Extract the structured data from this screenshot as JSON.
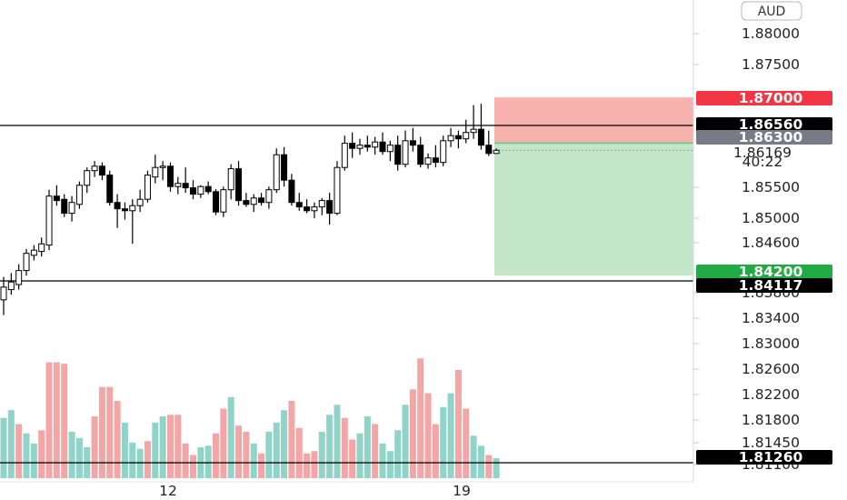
{
  "currency_badge": "AUD",
  "y_axis": {
    "tick_labels": [
      "1.88000",
      "1.87500",
      "1.85500",
      "1.85000",
      "1.84600",
      "1.83800",
      "1.83400",
      "1.83000",
      "1.82600",
      "1.82200",
      "1.81800",
      "1.81450",
      "1.81100"
    ]
  },
  "price_tags": [
    {
      "label": "1.87000",
      "color": "#f23645"
    },
    {
      "label": "1.86560",
      "color": "#000000"
    },
    {
      "label": "1.86300",
      "color": "#787b86"
    },
    {
      "label": "1.84200",
      "color": "#22ab45"
    },
    {
      "label": "1.84117",
      "color": "#000000"
    },
    {
      "label": "1.81260",
      "color": "#000000"
    }
  ],
  "current_price": {
    "label": "1.86169",
    "countdown": "40:22"
  },
  "x_axis": {
    "tick_labels": [
      "12",
      "19"
    ]
  },
  "colors": {
    "up": "#ffffff",
    "down": "#000000",
    "outline": "#000000",
    "vol_up": "#8fd3c9",
    "vol_down": "#f4a5a5",
    "stop_zone": "#f7b2ad",
    "target_zone": "#c3e6c9"
  },
  "chart_data": {
    "type": "candlestick",
    "symbol_quote_currency": "AUD",
    "horizontal_levels": [
      1.8656,
      1.84117,
      1.8126
    ],
    "position": {
      "entry": 1.863,
      "stop_loss": 1.87,
      "take_profit": 1.842
    },
    "last_price": 1.86169,
    "x_tick_labels": [
      "12",
      "19"
    ],
    "candles": [
      [
        1.8382,
        1.8418,
        1.8358,
        1.8402
      ],
      [
        1.8398,
        1.8424,
        1.839,
        1.841
      ],
      [
        1.8406,
        1.8438,
        1.8398,
        1.8428
      ],
      [
        1.8428,
        1.8462,
        1.842,
        1.8455
      ],
      [
        1.8452,
        1.8468,
        1.8444,
        1.846
      ],
      [
        1.8458,
        1.848,
        1.845,
        1.847
      ],
      [
        1.8468,
        1.8555,
        1.846,
        1.8545
      ],
      [
        1.8545,
        1.8562,
        1.853,
        1.8538
      ],
      [
        1.854,
        1.8548,
        1.8512,
        1.8518
      ],
      [
        1.8518,
        1.8545,
        1.8505,
        1.8535
      ],
      [
        1.8532,
        1.8568,
        1.8525,
        1.8562
      ],
      [
        1.8562,
        1.859,
        1.855,
        1.8585
      ],
      [
        1.8585,
        1.86,
        1.8575,
        1.8592
      ],
      [
        1.8592,
        1.8598,
        1.857,
        1.8578
      ],
      [
        1.8578,
        1.8585,
        1.853,
        1.8535
      ],
      [
        1.8535,
        1.8548,
        1.8495,
        1.8525
      ],
      [
        1.8525,
        1.8535,
        1.8508,
        1.8522
      ],
      [
        1.8522,
        1.854,
        1.847,
        1.853
      ],
      [
        1.853,
        1.8555,
        1.852,
        1.854
      ],
      [
        1.854,
        1.8585,
        1.8535,
        1.8578
      ],
      [
        1.8575,
        1.861,
        1.8565,
        1.859
      ],
      [
        1.859,
        1.86,
        1.857,
        1.8592
      ],
      [
        1.8592,
        1.8598,
        1.8552,
        1.856
      ],
      [
        1.856,
        1.8575,
        1.8548,
        1.8565
      ],
      [
        1.8565,
        1.859,
        1.855,
        1.8558
      ],
      [
        1.8558,
        1.857,
        1.854,
        1.8548
      ],
      [
        1.8548,
        1.8562,
        1.8542,
        1.856
      ],
      [
        1.856,
        1.8568,
        1.8548,
        1.8552
      ],
      [
        1.8552,
        1.8556,
        1.8515,
        1.852
      ],
      [
        1.852,
        1.856,
        1.8512,
        1.8555
      ],
      [
        1.8555,
        1.8595,
        1.854,
        1.8588
      ],
      [
        1.8588,
        1.86,
        1.853,
        1.8538
      ],
      [
        1.8538,
        1.855,
        1.8528,
        1.8532
      ],
      [
        1.8532,
        1.8548,
        1.852,
        1.8542
      ],
      [
        1.8542,
        1.855,
        1.853,
        1.8535
      ],
      [
        1.8535,
        1.856,
        1.8525,
        1.8555
      ],
      [
        1.8555,
        1.862,
        1.855,
        1.861
      ],
      [
        1.861,
        1.8622,
        1.856,
        1.857
      ],
      [
        1.857,
        1.858,
        1.853,
        1.8535
      ],
      [
        1.8535,
        1.855,
        1.8522,
        1.8528
      ],
      [
        1.8528,
        1.854,
        1.8518,
        1.8522
      ],
      [
        1.8522,
        1.8535,
        1.851,
        1.8528
      ],
      [
        1.8528,
        1.8542,
        1.8515,
        1.8538
      ],
      [
        1.8538,
        1.855,
        1.85,
        1.8518
      ],
      [
        1.8518,
        1.86,
        1.8515,
        1.859
      ],
      [
        1.859,
        1.864,
        1.8585,
        1.8628
      ],
      [
        1.8628,
        1.8645,
        1.8605,
        1.862
      ],
      [
        1.862,
        1.8635,
        1.861,
        1.8625
      ],
      [
        1.8625,
        1.864,
        1.8615,
        1.8622
      ],
      [
        1.8622,
        1.8638,
        1.861,
        1.863
      ],
      [
        1.863,
        1.8645,
        1.861,
        1.8615
      ],
      [
        1.8615,
        1.8632,
        1.86,
        1.8625
      ],
      [
        1.8625,
        1.864,
        1.8585,
        1.8595
      ],
      [
        1.8595,
        1.8648,
        1.859,
        1.8632
      ],
      [
        1.8632,
        1.8652,
        1.8615,
        1.8625
      ],
      [
        1.8625,
        1.8638,
        1.859,
        1.8595
      ],
      [
        1.8595,
        1.8612,
        1.8588,
        1.8605
      ],
      [
        1.8605,
        1.8625,
        1.859,
        1.8598
      ],
      [
        1.8598,
        1.864,
        1.8592,
        1.8632
      ],
      [
        1.8632,
        1.8652,
        1.8622,
        1.864
      ],
      [
        1.864,
        1.8648,
        1.862,
        1.8635
      ],
      [
        1.8635,
        1.8665,
        1.8628,
        1.8645
      ],
      [
        1.8645,
        1.8688,
        1.8635,
        1.865
      ],
      [
        1.865,
        1.869,
        1.8618,
        1.8625
      ],
      [
        1.8625,
        1.8648,
        1.8608,
        1.8612
      ],
      [
        1.8612,
        1.862,
        1.8612,
        1.8617
      ]
    ],
    "volume": [
      [
        1,
        78
      ],
      [
        1,
        88
      ],
      [
        0,
        70
      ],
      [
        1,
        58
      ],
      [
        1,
        45
      ],
      [
        0,
        62
      ],
      [
        0,
        150
      ],
      [
        0,
        150
      ],
      [
        0,
        148
      ],
      [
        1,
        60
      ],
      [
        1,
        52
      ],
      [
        1,
        40
      ],
      [
        0,
        80
      ],
      [
        0,
        118
      ],
      [
        0,
        118
      ],
      [
        0,
        100
      ],
      [
        1,
        72
      ],
      [
        1,
        46
      ],
      [
        1,
        38
      ],
      [
        0,
        48
      ],
      [
        1,
        72
      ],
      [
        1,
        80
      ],
      [
        0,
        82
      ],
      [
        0,
        82
      ],
      [
        0,
        45
      ],
      [
        0,
        30
      ],
      [
        1,
        40
      ],
      [
        1,
        42
      ],
      [
        0,
        58
      ],
      [
        0,
        90
      ],
      [
        1,
        105
      ],
      [
        0,
        68
      ],
      [
        0,
        60
      ],
      [
        1,
        45
      ],
      [
        0,
        32
      ],
      [
        1,
        60
      ],
      [
        1,
        72
      ],
      [
        1,
        88
      ],
      [
        0,
        100
      ],
      [
        0,
        65
      ],
      [
        0,
        32
      ],
      [
        0,
        35
      ],
      [
        1,
        60
      ],
      [
        1,
        82
      ],
      [
        1,
        95
      ],
      [
        0,
        78
      ],
      [
        0,
        50
      ],
      [
        1,
        58
      ],
      [
        1,
        80
      ],
      [
        0,
        70
      ],
      [
        1,
        45
      ],
      [
        1,
        35
      ],
      [
        1,
        62
      ],
      [
        1,
        95
      ],
      [
        0,
        115
      ],
      [
        0,
        155
      ],
      [
        0,
        110
      ],
      [
        0,
        70
      ],
      [
        1,
        92
      ],
      [
        1,
        110
      ],
      [
        0,
        140
      ],
      [
        0,
        90
      ],
      [
        1,
        55
      ],
      [
        1,
        42
      ],
      [
        0,
        30
      ],
      [
        1,
        26
      ]
    ]
  }
}
